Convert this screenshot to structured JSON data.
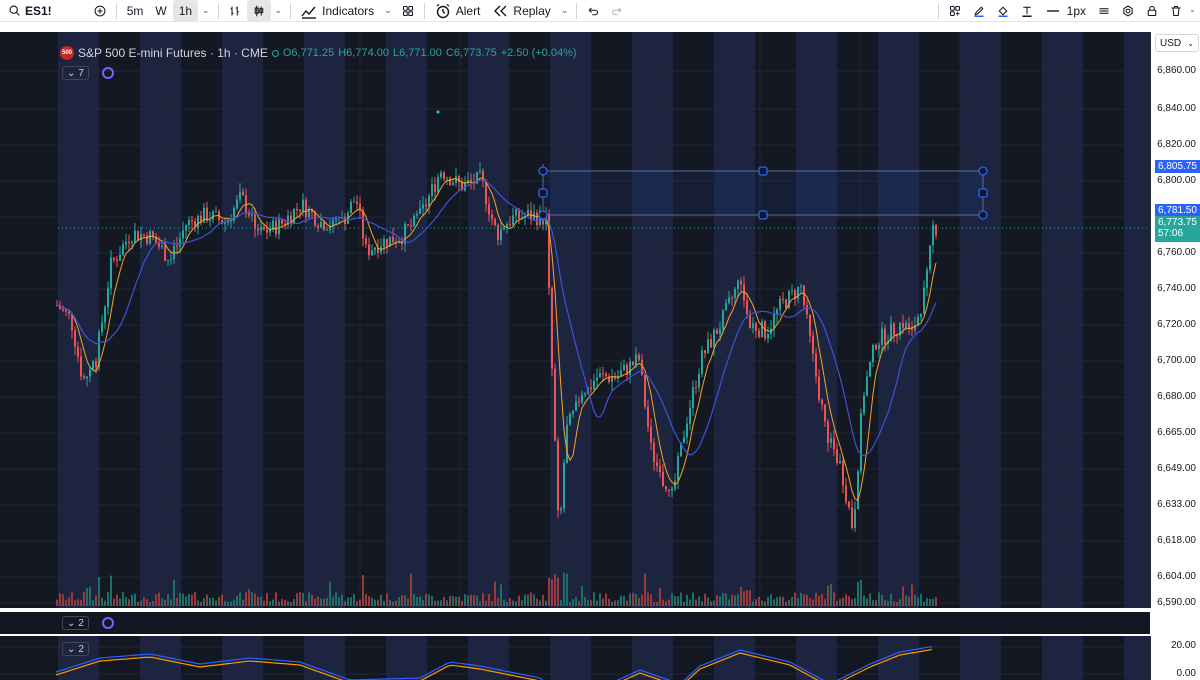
{
  "toolbar": {
    "symbol": "ES1!",
    "intervals": [
      "5m",
      "W",
      "1h"
    ],
    "active_interval": "1h",
    "indicators_label": "Indicators",
    "alert_label": "Alert",
    "replay_label": "Replay",
    "line_width_label": "1px"
  },
  "legend": {
    "logo_text": "500",
    "title": "S&P 500 E-mini Futures · 1h · CME",
    "open": "O6,771.25",
    "high": "H6,774.00",
    "low": "L6,771.00",
    "close": "C6,773.75",
    "change": "+2.50 (+0.04%)",
    "collapse_count": "7"
  },
  "osc1": {
    "collapse_count": "2"
  },
  "osc2": {
    "collapse_count": "2",
    "axis_labels": [
      "20.00",
      "0.00"
    ]
  },
  "price_axis": {
    "currency": "USD",
    "labels": [
      "6,860.00",
      "6,840.00",
      "6,820.00",
      "6,800.00",
      "6,780.00",
      "6,760.00",
      "6,740.00",
      "6,720.00",
      "6,700.00",
      "6,680.00",
      "6,665.00",
      "6,649.00",
      "6,633.00",
      "6,618.00",
      "6,604.00",
      "6,590.00"
    ],
    "tag_upper": "6,805.75",
    "tag_lower": "6,781.50",
    "tag_last": "6,773.75",
    "countdown": "57:06"
  },
  "colors": {
    "up": "#26a69a",
    "down": "#ef5350",
    "ma_fast": "#f5a623",
    "ma_slow": "#3f51d8",
    "session_band": "#1c2440",
    "selection": "#2962ff"
  }
}
